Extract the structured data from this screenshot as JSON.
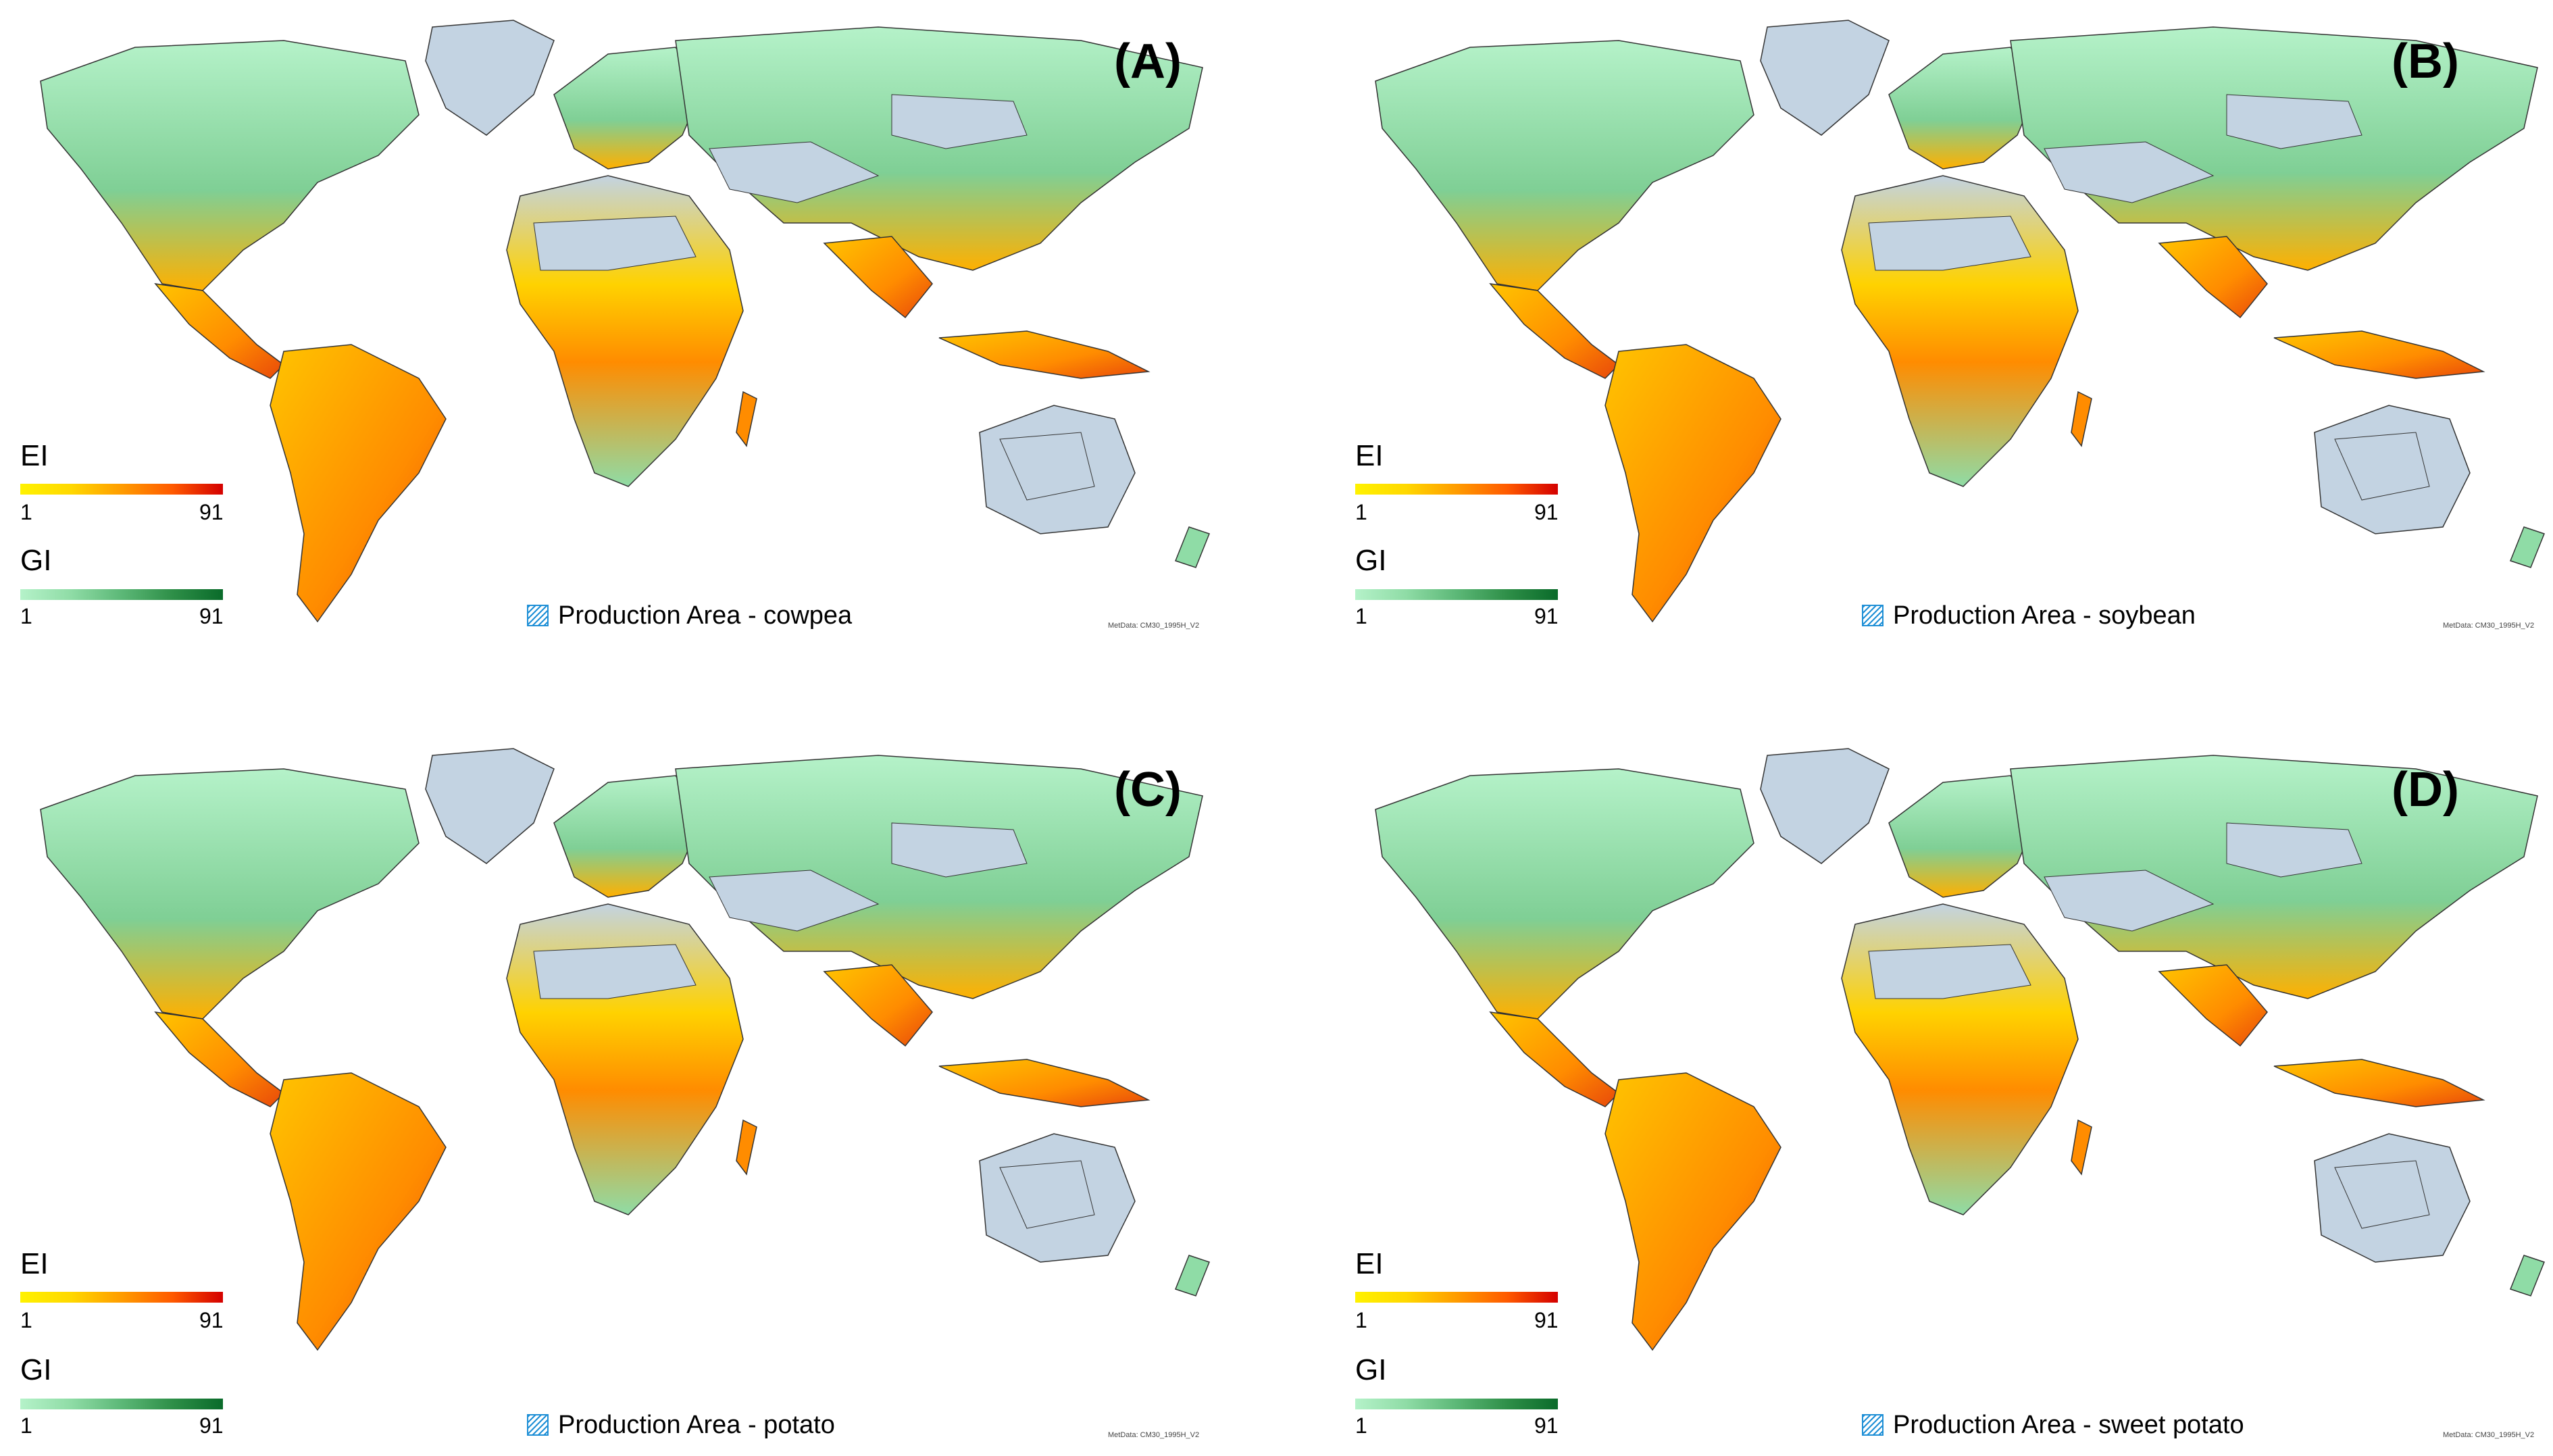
{
  "legend": {
    "ei_label": "EI",
    "gi_label": "GI",
    "min": "1",
    "max": "91",
    "production_prefix": "Production Area",
    "ei_colors": [
      "#fff200",
      "#ff9c00",
      "#d40000"
    ],
    "gi_colors": [
      "#b5f2c9",
      "#5cb877",
      "#0a6b2a"
    ],
    "hatch_color": "#1e8fd6"
  },
  "metdata": "MetData: CM30_1995H_V2",
  "colors": {
    "ocean": "#ffffff",
    "unsuitable": "#c3d3e2",
    "greenland": "#c3d3e2",
    "border": "#333333"
  },
  "panels": [
    {
      "label": "(A)",
      "crop": "- cowpea"
    },
    {
      "label": "(B)",
      "crop": "- soybean"
    },
    {
      "label": "(C)",
      "crop": "- potato"
    },
    {
      "label": "(D)",
      "crop": "- sweet potato"
    }
  ]
}
